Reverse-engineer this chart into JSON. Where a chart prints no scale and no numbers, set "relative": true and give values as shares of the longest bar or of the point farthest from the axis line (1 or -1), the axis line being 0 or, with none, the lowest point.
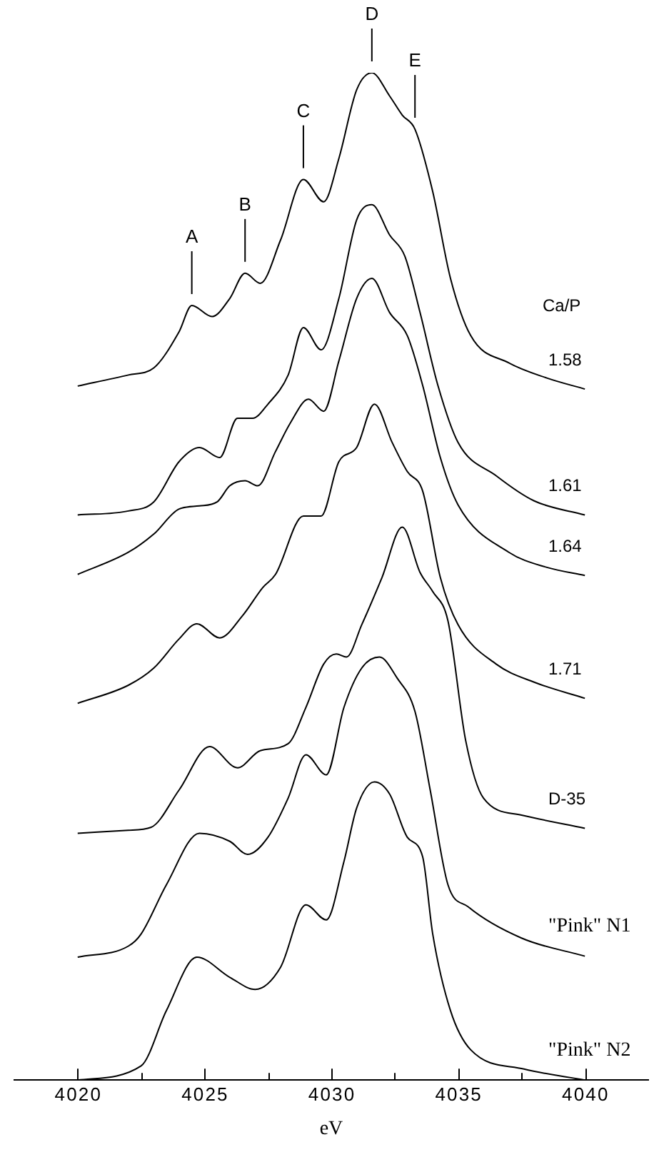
{
  "chart_data": {
    "type": "line",
    "xlabel": "eV",
    "legend_title": "Ca/P",
    "relative": true,
    "legend": false,
    "grid": false,
    "marker": "none",
    "line_style": "solid",
    "xlim": [
      4017.5,
      4042.5
    ],
    "xticks": [
      4020,
      {
        "value": 4022.5,
        "label": null
      },
      4025,
      {
        "value": 4027.5,
        "label": null
      },
      4030,
      {
        "value": 4032.5,
        "label": null
      },
      4035,
      {
        "value": 4037.5,
        "label": null
      },
      4040
    ],
    "series": [
      {
        "name": "1.58",
        "color": "#000000",
        "x": [
          4020,
          4022,
          4023,
          4024,
          4024.5,
          4025.3,
          4026,
          4026.6,
          4027.2,
          4028,
          4028.9,
          4029.7,
          4030.3,
          4031,
          4031.6,
          4032.3,
          4032.8,
          4033.3,
          4034,
          4034.7,
          4035.5,
          4037,
          4038.5,
          4040
        ],
        "values": [
          0.689,
          0.7,
          0.707,
          0.743,
          0.769,
          0.758,
          0.776,
          0.801,
          0.791,
          0.834,
          0.894,
          0.872,
          0.915,
          0.983,
          1.0,
          0.977,
          0.958,
          0.944,
          0.882,
          0.796,
          0.739,
          0.712,
          0.697,
          0.686
        ]
      },
      {
        "name": "1.61",
        "color": "#000000",
        "x": [
          4020,
          4022,
          4023,
          4024,
          4024.8,
          4025.6,
          4026.3,
          4026.9,
          4027.5,
          4028.3,
          4028.9,
          4029.6,
          4030.3,
          4031,
          4031.6,
          4032.3,
          4032.9,
          4033.5,
          4034.2,
          4035,
          4036.5,
          4038,
          4040
        ],
        "values": [
          0.561,
          0.565,
          0.574,
          0.614,
          0.628,
          0.618,
          0.657,
          0.657,
          0.671,
          0.7,
          0.747,
          0.725,
          0.776,
          0.854,
          0.869,
          0.839,
          0.818,
          0.762,
          0.69,
          0.633,
          0.6,
          0.575,
          0.561
        ]
      },
      {
        "name": "1.64",
        "color": "#000000",
        "x": [
          4020,
          4022,
          4023,
          4024,
          4024.8,
          4025.5,
          4026,
          4026.6,
          4027.1,
          4027.8,
          4028.4,
          4029.1,
          4029.7,
          4030.3,
          4031,
          4031.6,
          4032.3,
          4033,
          4033.6,
          4034.3,
          4035,
          4037,
          4038.5,
          4040
        ],
        "values": [
          0.502,
          0.524,
          0.542,
          0.567,
          0.57,
          0.574,
          0.59,
          0.595,
          0.59,
          0.624,
          0.653,
          0.676,
          0.664,
          0.714,
          0.776,
          0.796,
          0.762,
          0.739,
          0.69,
          0.618,
          0.571,
          0.524,
          0.509,
          0.501
        ]
      },
      {
        "name": "1.71",
        "color": "#000000",
        "x": [
          4020,
          4022,
          4023,
          4024,
          4024.7,
          4025.6,
          4026.5,
          4027.3,
          4027.8,
          4028.9,
          4029.6,
          4030.3,
          4031,
          4031.7,
          4032.4,
          4033,
          4033.6,
          4034.3,
          4035,
          4036.5,
          4038,
          4040
        ],
        "values": [
          0.374,
          0.392,
          0.409,
          0.438,
          0.453,
          0.439,
          0.461,
          0.489,
          0.502,
          0.56,
          0.56,
          0.614,
          0.628,
          0.671,
          0.633,
          0.604,
          0.585,
          0.499,
          0.452,
          0.413,
          0.395,
          0.379
        ]
      },
      {
        "name": "D-35",
        "color": "#000000",
        "x": [
          4020,
          4022,
          4022.9,
          4024,
          4025.2,
          4026.3,
          4027.2,
          4028.3,
          4029,
          4029.7,
          4030.2,
          4030.6,
          4031.2,
          4032,
          4032.8,
          4033.5,
          4034,
          4034.6,
          4035.3,
          4036,
          4037.5,
          4040
        ],
        "values": [
          0.245,
          0.248,
          0.251,
          0.288,
          0.331,
          0.31,
          0.327,
          0.334,
          0.37,
          0.413,
          0.423,
          0.42,
          0.452,
          0.499,
          0.549,
          0.504,
          0.485,
          0.456,
          0.337,
          0.28,
          0.263,
          0.25
        ]
      },
      {
        "name": "\"Pink\" N1",
        "color": "#000000",
        "x": [
          4020,
          4022,
          4022.5,
          4023.5,
          4024.8,
          4026,
          4026.7,
          4027.5,
          4028.3,
          4029,
          4029.8,
          4030.5,
          4031.2,
          4031.9,
          4032.6,
          4033.3,
          4033.9,
          4034.6,
          4035.4,
          4037.5,
          4040
        ],
        "values": [
          0.122,
          0.133,
          0.145,
          0.194,
          0.245,
          0.237,
          0.224,
          0.241,
          0.28,
          0.323,
          0.303,
          0.37,
          0.409,
          0.42,
          0.399,
          0.366,
          0.288,
          0.194,
          0.172,
          0.141,
          0.123
        ]
      },
      {
        "name": "\"Pink\" N2",
        "color": "#000000",
        "x": [
          4020,
          4022.5,
          4023.5,
          4024.7,
          4026,
          4027,
          4028,
          4029,
          4029.8,
          4030.5,
          4031,
          4031.7,
          4032.3,
          4033,
          4033.6,
          4034,
          4034.7,
          4035.5,
          4037.6,
          4040
        ],
        "values": [
          0,
          0.014,
          0.069,
          0.122,
          0.102,
          0.09,
          0.112,
          0.174,
          0.159,
          0.217,
          0.27,
          0.296,
          0.284,
          0.241,
          0.222,
          0.145,
          0.069,
          0.03,
          0.011,
          0
        ]
      }
    ],
    "annotations": [
      {
        "text": "A",
        "x": 4024.5,
        "y": 0.769
      },
      {
        "text": "B",
        "x": 4026.6,
        "y": 0.801
      },
      {
        "text": "C",
        "x": 4028.9,
        "y": 0.894
      },
      {
        "text": "D",
        "x": 4031.6,
        "y": 1.0
      },
      {
        "text": "E",
        "x": 4033.3,
        "y": 0.944
      }
    ]
  }
}
